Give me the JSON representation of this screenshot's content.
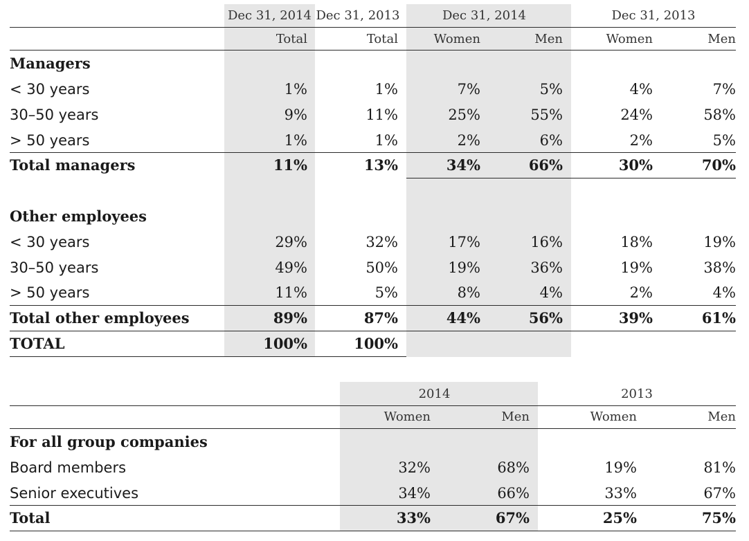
{
  "table1": {
    "period_headers": [
      "Dec 31, 2014",
      "Dec 31, 2013",
      "Dec 31, 2014",
      "Dec 31, 2013"
    ],
    "sub_headers": [
      "Total",
      "Total",
      "Women",
      "Men",
      "Women",
      "Men"
    ],
    "managers": {
      "title": "Managers",
      "rows": [
        {
          "label": "< 30 years",
          "values": [
            "1%",
            "1%",
            "7%",
            "5%",
            "4%",
            "7%"
          ]
        },
        {
          "label": "30–50 years",
          "values": [
            "9%",
            "11%",
            "25%",
            "55%",
            "24%",
            "58%"
          ]
        },
        {
          "label": "> 50 years",
          "values": [
            "1%",
            "1%",
            "2%",
            "6%",
            "2%",
            "5%"
          ]
        }
      ],
      "total": {
        "label": "Total managers",
        "values": [
          "11%",
          "13%",
          "34%",
          "66%",
          "30%",
          "70%"
        ]
      }
    },
    "other": {
      "title": "Other employees",
      "rows": [
        {
          "label": "< 30 years",
          "values": [
            "29%",
            "32%",
            "17%",
            "16%",
            "18%",
            "19%"
          ]
        },
        {
          "label": "30–50 years",
          "values": [
            "49%",
            "50%",
            "19%",
            "36%",
            "19%",
            "38%"
          ]
        },
        {
          "label": "> 50 years",
          "values": [
            "11%",
            "5%",
            "8%",
            "4%",
            "2%",
            "4%"
          ]
        }
      ],
      "total": {
        "label": "Total other employees",
        "values": [
          "89%",
          "87%",
          "44%",
          "56%",
          "39%",
          "61%"
        ]
      }
    },
    "grand_total": {
      "label": "TOTAL",
      "values": [
        "100%",
        "100%"
      ]
    }
  },
  "table2": {
    "year_headers": [
      "2014",
      "2013"
    ],
    "sub_headers": [
      "Women",
      "Men",
      "Women",
      "Men"
    ],
    "section_title": "For all group companies",
    "rows": [
      {
        "label": "Board members",
        "values": [
          "32%",
          "68%",
          "19%",
          "81%"
        ]
      },
      {
        "label": "Senior executives",
        "values": [
          "34%",
          "66%",
          "33%",
          "67%"
        ]
      }
    ],
    "total": {
      "label": "Total",
      "values": [
        "33%",
        "67%",
        "25%",
        "75%"
      ]
    }
  },
  "colors": {
    "shade": "#e6e6e6",
    "rule": "#2a2a2a",
    "text": "#1a1a1a"
  }
}
